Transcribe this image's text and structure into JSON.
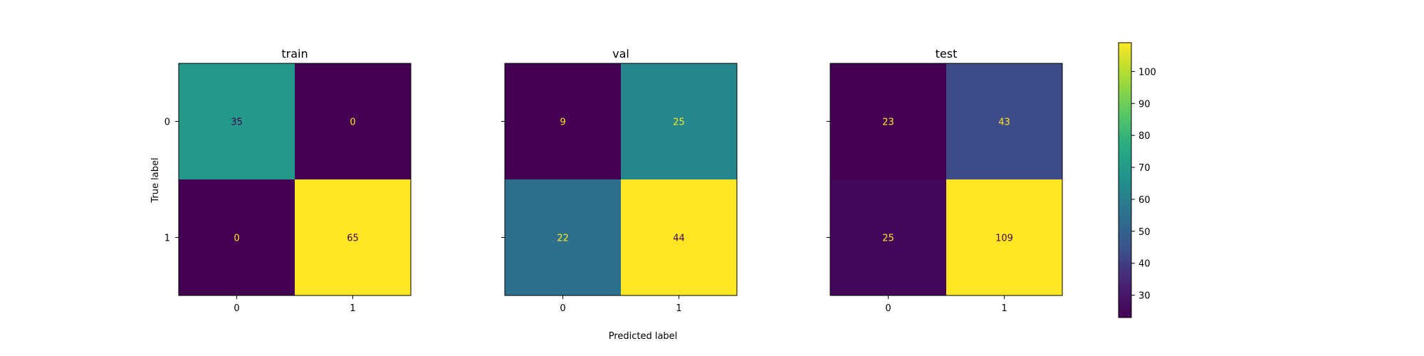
{
  "chart_data": {
    "type": "heatmap",
    "xlabel": "Predicted label",
    "ylabel": "True label",
    "class_labels": [
      "0",
      "1"
    ],
    "colormap": "viridis",
    "colorbar": {
      "range": [
        23,
        109
      ],
      "ticks": [
        30,
        40,
        50,
        60,
        70,
        80,
        90,
        100
      ]
    },
    "panels": [
      {
        "title": "train",
        "matrix": [
          [
            35,
            0
          ],
          [
            0,
            65
          ]
        ]
      },
      {
        "title": "val",
        "matrix": [
          [
            9,
            25
          ],
          [
            22,
            44
          ]
        ]
      },
      {
        "title": "test",
        "matrix": [
          [
            23,
            43
          ],
          [
            25,
            109
          ]
        ]
      }
    ]
  }
}
